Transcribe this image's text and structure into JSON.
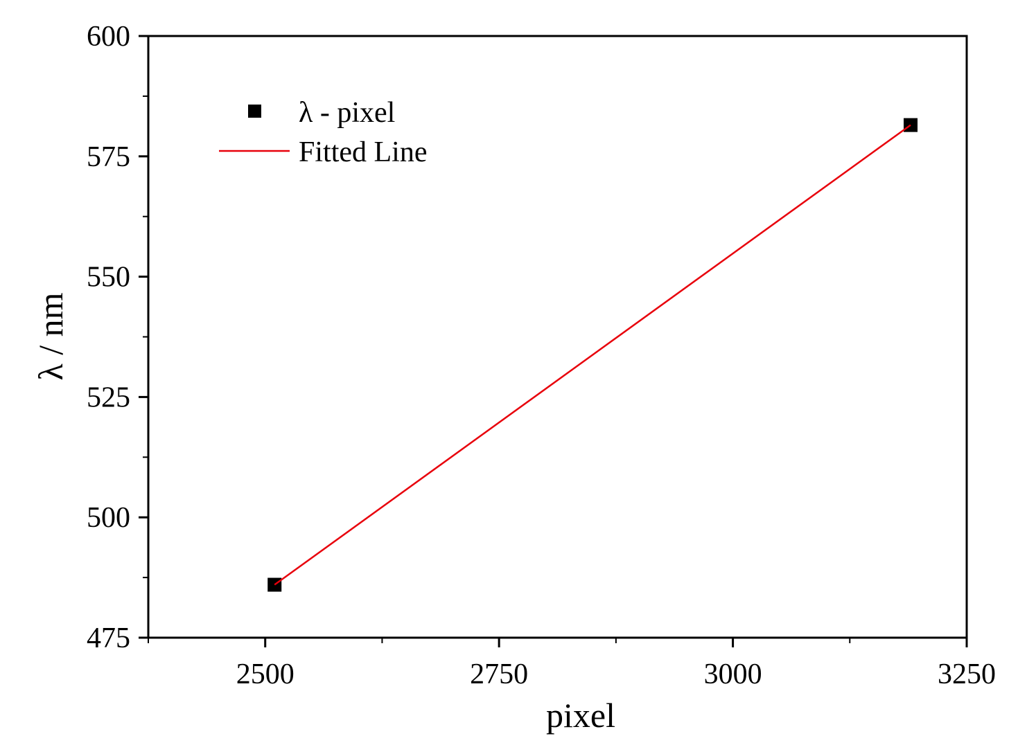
{
  "chart_data": {
    "type": "scatter",
    "title": "",
    "xlabel": "pixel",
    "ylabel": "λ / nm",
    "xlim": [
      2375,
      3250
    ],
    "ylim": [
      475,
      600
    ],
    "x_ticks": [
      2500,
      2750,
      3000,
      3250
    ],
    "x_tick_labels": [
      "2500",
      "2750",
      "3000",
      "3250"
    ],
    "x_minor_ticks": [
      2375,
      2625,
      2875,
      3125
    ],
    "y_ticks": [
      475,
      500,
      525,
      550,
      575,
      600
    ],
    "y_tick_labels": [
      "475",
      "500",
      "525",
      "550",
      "575",
      "600"
    ],
    "y_minor_ticks": [
      487.5,
      512.5,
      537.5,
      562.5,
      587.5
    ],
    "grid": false,
    "legend_position": "top-left",
    "series": [
      {
        "name": "λ - pixel",
        "kind": "scatter",
        "marker": "square",
        "color": "#000000",
        "x": [
          2510,
          3190
        ],
        "y": [
          486.0,
          581.5
        ]
      },
      {
        "name": "Fitted Line",
        "kind": "line",
        "color": "#e8000b",
        "x": [
          2510,
          3190
        ],
        "y": [
          486.0,
          581.5
        ]
      }
    ]
  }
}
